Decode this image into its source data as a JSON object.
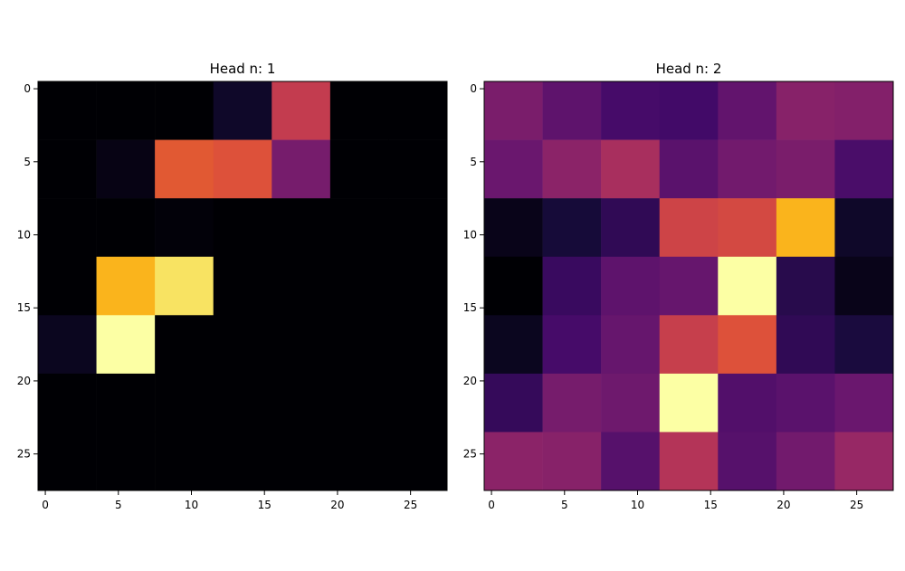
{
  "chart_data": [
    {
      "type": "heatmap",
      "title": "Head n: 1",
      "xlabel": "",
      "ylabel": "",
      "colormap": "inferno",
      "xlim": [
        -0.5,
        27.5
      ],
      "ylim": [
        27.5,
        -0.5
      ],
      "xticks": [
        0,
        5,
        10,
        15,
        20,
        25
      ],
      "yticks": [
        0,
        5,
        10,
        15,
        20,
        25
      ],
      "block_size": 4,
      "grid": false,
      "values": [
        [
          0.0,
          0.0,
          0.0,
          0.07,
          0.52,
          0.0,
          0.0
        ],
        [
          0.0,
          0.03,
          0.62,
          0.6,
          0.33,
          0.0,
          0.0
        ],
        [
          0.0,
          0.0,
          0.01,
          0.0,
          0.0,
          0.0,
          0.0
        ],
        [
          0.0,
          0.83,
          0.93,
          0.0,
          0.0,
          0.0,
          0.0
        ],
        [
          0.05,
          1.0,
          0.0,
          0.0,
          0.0,
          0.0,
          0.0
        ],
        [
          0.0,
          0.0,
          0.0,
          0.0,
          0.0,
          0.0,
          0.0
        ],
        [
          0.0,
          0.0,
          0.0,
          0.0,
          0.0,
          0.0,
          0.0
        ]
      ]
    },
    {
      "type": "heatmap",
      "title": "Head n: 2",
      "xlabel": "",
      "ylabel": "",
      "colormap": "inferno",
      "xlim": [
        -0.5,
        27.5
      ],
      "ylim": [
        27.5,
        -0.5
      ],
      "xticks": [
        0,
        5,
        10,
        15,
        20,
        25
      ],
      "yticks": [
        0,
        5,
        10,
        15,
        20,
        25
      ],
      "block_size": 4,
      "grid": false,
      "values": [
        [
          0.34,
          0.27,
          0.21,
          0.2,
          0.28,
          0.37,
          0.36
        ],
        [
          0.3,
          0.38,
          0.45,
          0.26,
          0.32,
          0.34,
          0.22
        ],
        [
          0.04,
          0.1,
          0.16,
          0.55,
          0.57,
          0.83,
          0.07
        ],
        [
          0.0,
          0.18,
          0.27,
          0.29,
          1.0,
          0.14,
          0.04
        ],
        [
          0.05,
          0.21,
          0.29,
          0.53,
          0.6,
          0.16,
          0.11
        ],
        [
          0.17,
          0.33,
          0.31,
          1.0,
          0.24,
          0.26,
          0.3
        ],
        [
          0.38,
          0.37,
          0.25,
          0.48,
          0.25,
          0.32,
          0.41
        ]
      ]
    }
  ]
}
